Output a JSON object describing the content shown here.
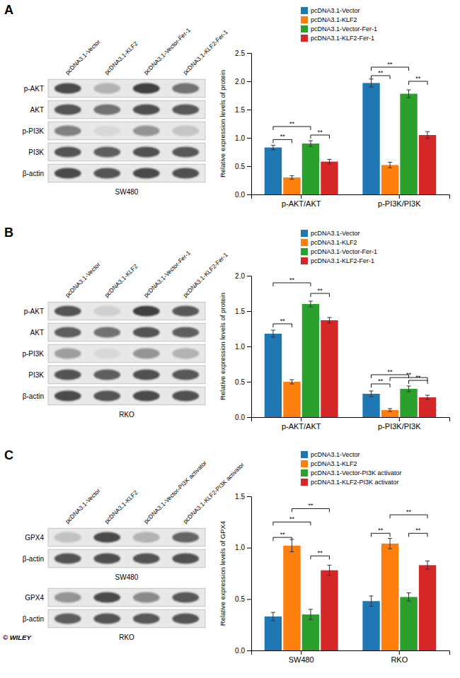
{
  "chart_data": [
    {
      "type": "heatmap",
      "title": "A",
      "categories": [
        "pcDNA3.1-Vector",
        "pcDNA3.1-KLF2",
        "pcDNA3.1-Vector-Fer-1",
        "pcDNA3.1-KLF2-Fer-1"
      ],
      "rows": [
        "p-AKT",
        "AKT",
        "p-PI3K",
        "PI3K",
        "β-actin"
      ],
      "cells": [
        [
          0.85,
          0.3,
          0.9,
          0.65
        ],
        [
          0.8,
          0.65,
          0.82,
          0.78
        ],
        [
          0.55,
          0.08,
          0.45,
          0.2
        ],
        [
          0.8,
          0.75,
          0.82,
          0.78
        ],
        [
          0.85,
          0.8,
          0.85,
          0.82
        ]
      ],
      "xlabel": "SW480"
    },
    {
      "type": "bar",
      "categories": [
        "p-AKT/AKT",
        "p-PI3K/PI3K"
      ],
      "series": [
        {
          "name": "pcDNA3.1-Vector",
          "values": [
            0.83,
            1.97
          ],
          "errors": [
            0.04,
            0.07
          ]
        },
        {
          "name": "pcDNA3.1-KLF2",
          "values": [
            0.3,
            0.52
          ],
          "errors": [
            0.03,
            0.05
          ]
        },
        {
          "name": "pcDNA3.1-Vector-Fer-1",
          "values": [
            0.9,
            1.78
          ],
          "errors": [
            0.05,
            0.07
          ]
        },
        {
          "name": "pcDNA3.1-KLF2-Fer-1",
          "values": [
            0.58,
            1.05
          ],
          "errors": [
            0.04,
            0.06
          ]
        }
      ],
      "ylabel": "Relative expression levels of protein",
      "ylim": [
        0,
        2.5
      ],
      "yticks": [
        {
          "value": 0.0,
          "label": "0.0"
        },
        0.5,
        {
          "value": 1.0,
          "label": "1.0"
        },
        1.5,
        {
          "value": 2.0,
          "label": "2.0"
        },
        2.5
      ],
      "legend": "upper-right",
      "annotations": [
        {
          "text": "**",
          "category": 0,
          "from": 0,
          "to": 1,
          "y": 0.97
        },
        {
          "text": "**",
          "category": 0,
          "from": 2,
          "to": 3,
          "y": 1.05
        },
        {
          "text": "**",
          "category": 0,
          "from": 0,
          "to": 2,
          "y": 1.2
        },
        {
          "text": "**",
          "category": 1,
          "from": 0,
          "to": 1,
          "y": 2.1
        },
        {
          "text": "**",
          "category": 1,
          "from": 2,
          "to": 3,
          "y": 2.0
        },
        {
          "text": "**",
          "category": 1,
          "from": 0,
          "to": 2,
          "y": 2.25
        }
      ]
    },
    {
      "type": "heatmap",
      "title": "B",
      "categories": [
        "pcDNA3.1-Vector",
        "pcDNA3.1-KLF2",
        "pcDNA3.1-Vector-Fer-1",
        "pcDNA3.1-KLF2-Fer-1"
      ],
      "rows": [
        "p-AKT",
        "AKT",
        "p-PI3K",
        "PI3K",
        "β-actin"
      ],
      "cells": [
        [
          0.8,
          0.12,
          0.9,
          0.78
        ],
        [
          0.75,
          0.65,
          0.8,
          0.75
        ],
        [
          0.4,
          0.08,
          0.45,
          0.3
        ],
        [
          0.8,
          0.75,
          0.82,
          0.78
        ],
        [
          0.85,
          0.8,
          0.85,
          0.82
        ]
      ],
      "xlabel": "RKO"
    },
    {
      "type": "bar",
      "categories": [
        "p-AKT/AKT",
        "p-PI3K/PI3K"
      ],
      "series": [
        {
          "name": "pcDNA3.1-Vector",
          "values": [
            1.18,
            0.33
          ],
          "errors": [
            0.05,
            0.04
          ]
        },
        {
          "name": "pcDNA3.1-KLF2",
          "values": [
            0.5,
            0.1
          ],
          "errors": [
            0.03,
            0.02
          ]
        },
        {
          "name": "pcDNA3.1-Vector-Fer-1",
          "values": [
            1.6,
            0.4
          ],
          "errors": [
            0.04,
            0.04
          ]
        },
        {
          "name": "pcDNA3.1-KLF2-Fer-1",
          "values": [
            1.37,
            0.28
          ],
          "errors": [
            0.04,
            0.03
          ]
        }
      ],
      "ylabel": "Relative expression levels of protein",
      "ylim": [
        0,
        2.0
      ],
      "yticks": [
        {
          "value": 0.0,
          "label": "0.0"
        },
        0.5,
        {
          "value": 1.0,
          "label": "1.0"
        },
        1.5,
        {
          "value": 2.0,
          "label": "2.0"
        }
      ],
      "legend": "upper-right",
      "annotations": [
        {
          "text": "**",
          "category": 0,
          "from": 0,
          "to": 1,
          "y": 1.32
        },
        {
          "text": "**",
          "category": 0,
          "from": 2,
          "to": 3,
          "y": 1.75
        },
        {
          "text": "**",
          "category": 0,
          "from": 0,
          "to": 2,
          "y": 1.9
        },
        {
          "text": "**",
          "category": 1,
          "from": 0,
          "to": 1,
          "y": 0.47
        },
        {
          "text": "**",
          "category": 1,
          "from": 2,
          "to": 3,
          "y": 0.52
        },
        {
          "text": "**",
          "category": 1,
          "from": 0,
          "to": 2,
          "y": 0.6
        },
        {
          "text": "**",
          "category": 1,
          "from": 1,
          "to": 3,
          "y": 0.56
        }
      ]
    },
    {
      "type": "heatmap",
      "title": "C",
      "categories": [
        "pcDNA3.1-Vector",
        "pcDNA3.1-KLF2",
        "pcDNA3.1-Vector-PI3K activator",
        "pcDNA3.1-KLF2-PI3K activator"
      ],
      "rows": [
        "GPX4",
        "β-actin"
      ],
      "cells": [
        [
          0.22,
          0.85,
          0.3,
          0.72
        ],
        [
          0.8,
          0.82,
          0.8,
          0.82
        ]
      ],
      "xlabel": "SW480"
    },
    {
      "type": "heatmap",
      "categories": [
        null,
        null,
        null,
        null
      ],
      "rows": [
        "GPX4",
        "β-actin"
      ],
      "cells": [
        [
          0.45,
          0.85,
          0.5,
          0.78
        ],
        [
          0.75,
          0.8,
          0.78,
          0.8
        ]
      ],
      "xlabel": "RKO",
      "annotations": [
        {
          "text": "© WILEY"
        }
      ]
    },
    {
      "type": "bar",
      "categories": [
        "SW480",
        "RKO"
      ],
      "series": [
        {
          "name": "pcDNA3.1-Vector",
          "values": [
            0.33,
            0.48
          ],
          "errors": [
            0.04,
            0.05
          ]
        },
        {
          "name": "pcDNA3.1-KLF2",
          "values": [
            1.02,
            1.04
          ],
          "errors": [
            0.06,
            0.05
          ]
        },
        {
          "name": "pcDNA3.1-Vector-PI3K activator",
          "values": [
            0.35,
            0.52
          ],
          "errors": [
            0.05,
            0.04
          ]
        },
        {
          "name": "pcDNA3.1-KLF2-PI3K activator",
          "values": [
            0.78,
            0.83
          ],
          "errors": [
            0.05,
            0.04
          ]
        }
      ],
      "ylabel": "Relative expression levels of GPX4",
      "ylim": [
        0,
        1.5
      ],
      "yticks": [
        {
          "value": 0.0,
          "label": "0.0"
        },
        0.5,
        {
          "value": 1.0,
          "label": "1.0"
        },
        1.5
      ],
      "legend": "upper-right",
      "annotations": [
        {
          "text": "**",
          "category": 0,
          "from": 0,
          "to": 1,
          "y": 1.1
        },
        {
          "text": "**",
          "category": 0,
          "from": 0,
          "to": 2,
          "y": 1.25
        },
        {
          "text": "**",
          "category": 0,
          "from": 1,
          "to": 3,
          "y": 1.38
        },
        {
          "text": "**",
          "category": 0,
          "from": 2,
          "to": 3,
          "y": 0.92
        },
        {
          "text": "**",
          "category": 1,
          "from": 0,
          "to": 1,
          "y": 1.14
        },
        {
          "text": "**",
          "category": 1,
          "from": 2,
          "to": 3,
          "y": 1.14
        },
        {
          "text": "**",
          "category": 1,
          "from": 1,
          "to": 3,
          "y": 1.32
        }
      ]
    }
  ]
}
